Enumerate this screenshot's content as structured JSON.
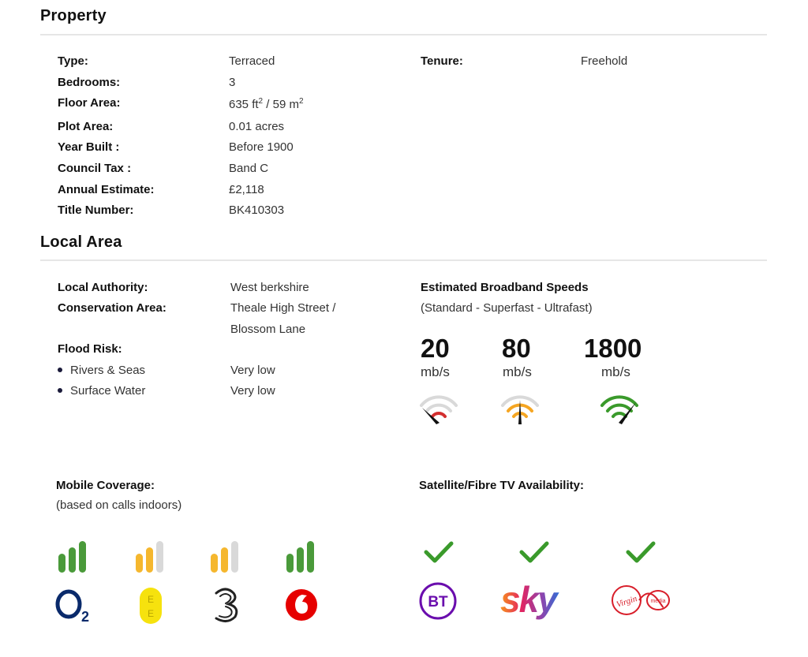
{
  "property": {
    "title": "Property",
    "rows": [
      {
        "label": "Type:",
        "value": "Terraced"
      },
      {
        "label": "Bedrooms:",
        "value": "3"
      },
      {
        "label": "Floor Area:",
        "value_pre": "635 ft",
        "value_sup1": "2",
        "value_mid": " / 59 m",
        "value_sup2": "2"
      },
      {
        "label": "Plot Area:",
        "value": "0.01 acres"
      },
      {
        "label": "Year Built :",
        "value": "Before 1900"
      },
      {
        "label": "Council Tax :",
        "value": "Band C"
      },
      {
        "label": "Annual Estimate:",
        "value": "£2,118"
      },
      {
        "label": "Title Number:",
        "value": "BK410303"
      }
    ],
    "tenure": {
      "label": "Tenure:",
      "value": "Freehold"
    }
  },
  "local_area": {
    "title": "Local Area",
    "local_authority": {
      "label": "Local Authority:",
      "value": "West berkshire"
    },
    "conservation_area": {
      "label": "Conservation Area:",
      "value_line1": "Theale High Street /",
      "value_line2": "Blossom Lane"
    },
    "flood_risk": {
      "label": "Flood Risk:",
      "items": [
        {
          "label": "Rivers & Seas",
          "value": "Very low"
        },
        {
          "label": "Surface Water",
          "value": "Very low"
        }
      ]
    },
    "broadband": {
      "title": "Estimated Broadband Speeds",
      "subtitle": "(Standard - Superfast - Ultrafast)",
      "speeds": [
        {
          "value": "20",
          "unit": "mb/s",
          "color": "#d32f2f",
          "level": 0.15
        },
        {
          "value": "80",
          "unit": "mb/s",
          "color": "#f5a623",
          "level": 0.5
        },
        {
          "value": "1800",
          "unit": "mb/s",
          "color": "#3a9a2b",
          "level": 1.0
        }
      ]
    },
    "mobile": {
      "title": "Mobile Coverage:",
      "subtitle": "(based on calls indoors)",
      "providers": [
        {
          "name": "O2",
          "icon": "o2-logo-icon",
          "bars_filled": 3,
          "color": "#4a9a3a"
        },
        {
          "name": "EE",
          "icon": "ee-logo-icon",
          "bars_filled": 2,
          "color": "#f5b72e"
        },
        {
          "name": "Three",
          "icon": "three-logo-icon",
          "bars_filled": 2,
          "color": "#f5b72e"
        },
        {
          "name": "Vodafone",
          "icon": "vodafone-logo-icon",
          "bars_filled": 3,
          "color": "#4a9a3a"
        }
      ]
    },
    "tv": {
      "title": "Satellite/Fibre TV Availability:",
      "providers": [
        {
          "name": "BT",
          "icon": "bt-logo-icon",
          "available": true
        },
        {
          "name": "sky",
          "icon": "sky-logo-icon",
          "available": true
        },
        {
          "name": "Virgin media",
          "icon": "virgin-media-logo-icon",
          "available": true
        }
      ]
    }
  },
  "colors": {
    "check": "#3a9a2b",
    "gauge_grey": "#d9d9d9",
    "bar_grey": "#d9d9d9"
  }
}
